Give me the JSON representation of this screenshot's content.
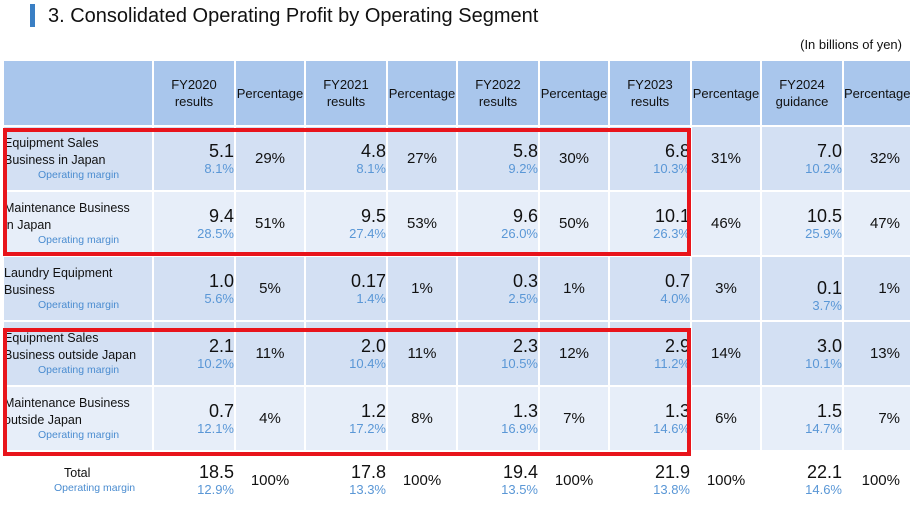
{
  "title": "3. Consolidated Operating Profit by Operating Segment",
  "unit": "(In billions of yen)",
  "headers": {
    "fy2020": [
      "FY2020",
      "results"
    ],
    "fy2021": [
      "FY2021",
      "results"
    ],
    "fy2022": [
      "FY2022",
      "results"
    ],
    "fy2023": [
      "FY2023",
      "results"
    ],
    "fy2024": [
      "FY2024",
      "guidance"
    ],
    "percentage": "Percentage"
  },
  "margin_label": "Operating margin",
  "rows": [
    {
      "label1": "Equipment Sales",
      "label2": "Business in Japan",
      "cells": [
        {
          "v": "5.1",
          "m": "8.1%",
          "p": "29%"
        },
        {
          "v": "4.8",
          "m": "8.1%",
          "p": "27%"
        },
        {
          "v": "5.8",
          "m": "9.2%",
          "p": "30%"
        },
        {
          "v": "6.8",
          "m": "10.3%",
          "p": "31%"
        },
        {
          "v": "7.0",
          "m": "10.2%",
          "p": "32%"
        }
      ]
    },
    {
      "label1": "Maintenance Business",
      "label2": "in Japan",
      "cells": [
        {
          "v": "9.4",
          "m": "28.5%",
          "p": "51%"
        },
        {
          "v": "9.5",
          "m": "27.4%",
          "p": "53%"
        },
        {
          "v": "9.6",
          "m": "26.0%",
          "p": "50%"
        },
        {
          "v": "10.1",
          "m": "26.3%",
          "p": "46%"
        },
        {
          "v": "10.5",
          "m": "25.9%",
          "p": "47%"
        }
      ]
    },
    {
      "label1": "Laundry Equipment",
      "label2": "Business",
      "cells": [
        {
          "v": "1.0",
          "m": "5.6%",
          "p": "5%"
        },
        {
          "v": "0.17",
          "m": "1.4%",
          "p": "1%"
        },
        {
          "v": "0.3",
          "m": "2.5%",
          "p": "1%"
        },
        {
          "v": "0.7",
          "m": "4.0%",
          "p": "3%"
        },
        {
          "v": "0.1",
          "m": "3.7%",
          "p": "1%"
        }
      ]
    },
    {
      "label1": "Equipment Sales",
      "label2": "Business outside Japan",
      "cells": [
        {
          "v": "2.1",
          "m": "10.2%",
          "p": "11%"
        },
        {
          "v": "2.0",
          "m": "10.4%",
          "p": "11%"
        },
        {
          "v": "2.3",
          "m": "10.5%",
          "p": "12%"
        },
        {
          "v": "2.9",
          "m": "11.2%",
          "p": "14%"
        },
        {
          "v": "3.0",
          "m": "10.1%",
          "p": "13%"
        }
      ]
    },
    {
      "label1": "Maintenance Business",
      "label2": "outside Japan",
      "cells": [
        {
          "v": "0.7",
          "m": "12.1%",
          "p": "4%"
        },
        {
          "v": "1.2",
          "m": "17.2%",
          "p": "8%"
        },
        {
          "v": "1.3",
          "m": "16.9%",
          "p": "7%"
        },
        {
          "v": "1.3",
          "m": "14.6%",
          "p": "6%"
        },
        {
          "v": "1.5",
          "m": "14.7%",
          "p": "7%"
        }
      ]
    }
  ],
  "total": {
    "label": "Total",
    "cells": [
      {
        "v": "18.5",
        "m": "12.9%",
        "p": "100%"
      },
      {
        "v": "17.8",
        "m": "13.3%",
        "p": "100%"
      },
      {
        "v": "19.4",
        "m": "13.5%",
        "p": "100%"
      },
      {
        "v": "21.9",
        "m": "13.8%",
        "p": "100%"
      },
      {
        "v": "22.1",
        "m": "14.6%",
        "p": "100%"
      }
    ]
  },
  "colors": {
    "accent": "#3a7fc4",
    "header_bg": "#a9c6ec",
    "row_a": "#d3e0f3",
    "row_b": "#e7eef9",
    "margin_text": "#5a97d6",
    "highlight_box": "#e8141b"
  }
}
